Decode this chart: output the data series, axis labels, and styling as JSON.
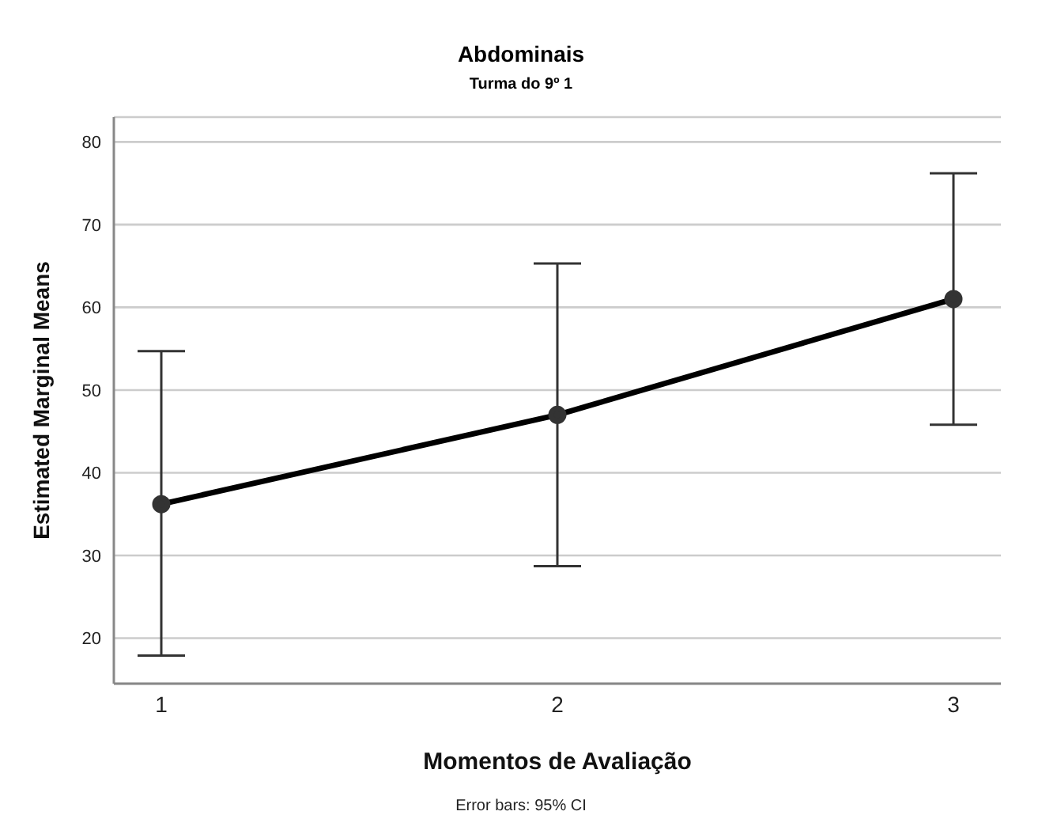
{
  "chart_data": {
    "type": "line",
    "title": "Abdominais",
    "subtitle": "Turma do 9º 1",
    "xlabel": "Momentos de Avaliação",
    "ylabel": "Estimated Marginal Means",
    "annotations": [
      "Error bars: 95% CI"
    ],
    "categories": [
      "1",
      "2",
      "3"
    ],
    "color": "#000000",
    "values": [
      36.2,
      47.0,
      61.0
    ],
    "errors": [
      [
        17.9,
        54.7
      ],
      [
        28.7,
        65.3
      ],
      [
        45.8,
        76.2
      ]
    ],
    "ylim": [
      14.5,
      83
    ],
    "yticks": [
      20,
      30,
      40,
      50,
      60,
      70,
      80
    ],
    "grid": "y",
    "marker": "circle",
    "line_style": "solid"
  }
}
